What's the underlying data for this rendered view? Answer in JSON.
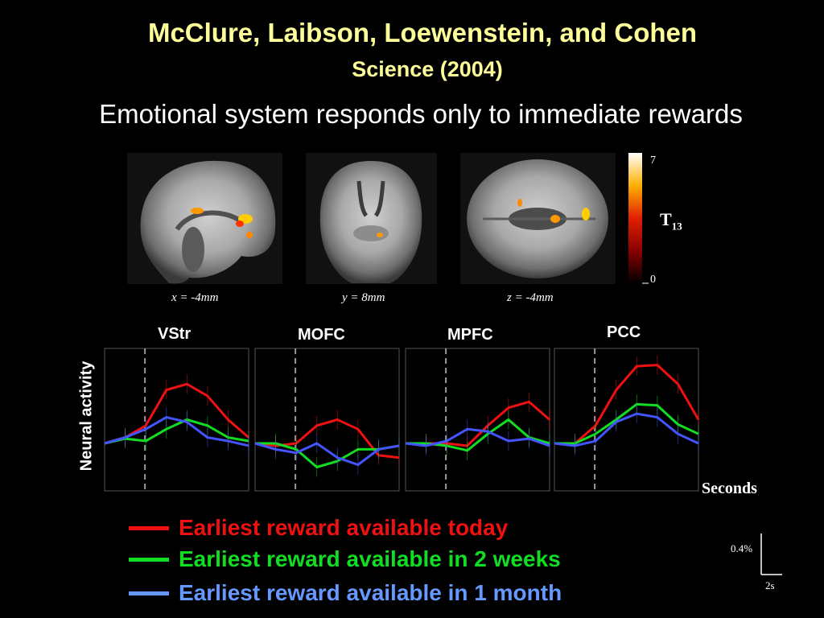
{
  "header": {
    "authors": "McClure, Laibson, Loewenstein, and Cohen",
    "journal": "Science (2004)",
    "subtitle": "Emotional system responds only to immediate rewards"
  },
  "brain_slices": [
    {
      "label": "x = -4mm"
    },
    {
      "label": "y = 8mm"
    },
    {
      "label": "z = -4mm"
    }
  ],
  "colorbar": {
    "max": "7",
    "min": "0",
    "stat_label": "T",
    "stat_sub": "13"
  },
  "legend_items": [
    {
      "label": "Earliest reward available today",
      "color": "#ee1111"
    },
    {
      "label": "Earliest reward available in 2 weeks",
      "color": "#11dd22"
    },
    {
      "label": "Earliest reward available in 1 month",
      "color": "#6699ff"
    }
  ],
  "scale_bar": {
    "vertical_label": "0.4%",
    "horizontal_label": "2s"
  },
  "chart_data": {
    "type": "line",
    "ylabel": "Neural activity",
    "xlabel": "Seconds",
    "ylim": [
      -0.4,
      0.8
    ],
    "x": [
      0,
      1,
      2,
      3,
      4,
      5,
      6,
      7
    ],
    "panels": [
      {
        "title": "VStr",
        "series": [
          {
            "values": [
              0.0,
              0.05,
              0.15,
              0.45,
              0.5,
              0.4,
              0.2,
              0.05
            ],
            "color": "#ee1111"
          },
          {
            "values": [
              0.0,
              0.04,
              0.02,
              0.12,
              0.2,
              0.15,
              0.05,
              0.02
            ],
            "color": "#11dd22"
          },
          {
            "values": [
              0.0,
              0.05,
              0.12,
              0.22,
              0.18,
              0.05,
              0.02,
              -0.02
            ],
            "color": "#4455ff"
          }
        ]
      },
      {
        "title": "MOFC",
        "series": [
          {
            "values": [
              0.0,
              -0.02,
              0.0,
              0.15,
              0.2,
              0.12,
              -0.1,
              -0.12
            ],
            "color": "#ee1111"
          },
          {
            "values": [
              0.0,
              0.0,
              -0.05,
              -0.2,
              -0.15,
              -0.05,
              -0.05,
              -0.02
            ],
            "color": "#11dd22"
          },
          {
            "values": [
              0.0,
              -0.05,
              -0.08,
              0.0,
              -0.12,
              -0.18,
              -0.05,
              -0.02
            ],
            "color": "#4455ff"
          }
        ]
      },
      {
        "title": "MPFC",
        "series": [
          {
            "values": [
              0.0,
              0.0,
              0.0,
              -0.02,
              0.15,
              0.3,
              0.35,
              0.2
            ],
            "color": "#ee1111"
          },
          {
            "values": [
              0.0,
              0.0,
              -0.02,
              -0.06,
              0.08,
              0.2,
              0.05,
              0.0
            ],
            "color": "#11dd22"
          },
          {
            "values": [
              0.0,
              -0.02,
              0.02,
              0.12,
              0.1,
              0.02,
              0.04,
              -0.02
            ],
            "color": "#4455ff"
          }
        ]
      },
      {
        "title": "PCC",
        "series": [
          {
            "values": [
              0.0,
              0.0,
              0.15,
              0.45,
              0.65,
              0.66,
              0.5,
              0.2
            ],
            "color": "#ee1111"
          },
          {
            "values": [
              0.0,
              0.0,
              0.08,
              0.2,
              0.33,
              0.32,
              0.16,
              0.08
            ],
            "color": "#11dd22"
          },
          {
            "values": [
              0.0,
              -0.02,
              0.02,
              0.18,
              0.25,
              0.22,
              0.08,
              0.0
            ],
            "color": "#4455ff"
          }
        ]
      }
    ]
  }
}
